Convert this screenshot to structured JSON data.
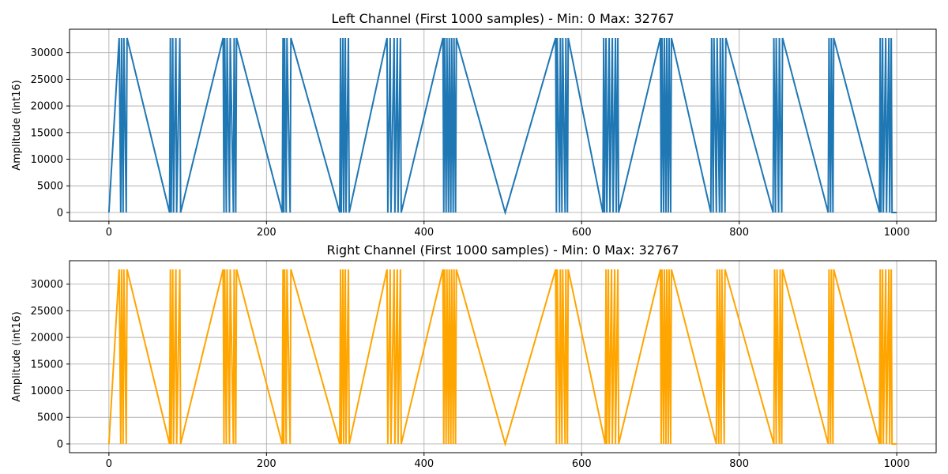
{
  "chart_data": [
    {
      "type": "line",
      "title": "Left Channel (First 1000 samples) - Min: 0 Max: 32767",
      "xlabel": "",
      "ylabel": "Amplitude (int16)",
      "xlim": [
        -50,
        1050
      ],
      "ylim": [
        -1638,
        34405
      ],
      "xticks": [
        0,
        200,
        400,
        600,
        800,
        1000
      ],
      "yticks": [
        0,
        5000,
        10000,
        15000,
        20000,
        25000,
        30000
      ],
      "grid": true,
      "color": "#1f77b4",
      "series": [
        {
          "low": 0,
          "high": 32767,
          "start_level": 0,
          "x_end": 1000,
          "x_step": 1,
          "transitions": [
            13,
            15,
            16,
            18,
            19,
            22,
            23,
            77,
            78,
            79,
            81,
            82,
            85,
            86,
            90,
            91,
            145,
            146,
            147,
            149,
            150,
            153,
            154,
            158,
            159,
            161,
            162,
            220,
            221,
            222,
            223,
            225,
            226,
            230,
            231,
            293,
            294,
            295,
            297,
            298,
            300,
            301,
            304,
            305,
            353,
            354,
            357,
            358,
            362,
            363,
            366,
            367,
            370,
            371,
            424,
            425,
            426,
            428,
            429,
            431,
            432,
            434,
            435,
            437,
            438,
            440,
            441,
            503,
            567,
            568,
            569,
            572,
            573,
            575,
            576,
            579,
            580,
            582,
            583,
            627,
            628,
            629,
            631,
            632,
            635,
            636,
            639,
            640,
            643,
            644,
            646,
            647,
            700,
            701,
            702,
            704,
            705,
            707,
            708,
            710,
            711,
            713,
            714,
            764,
            765,
            767,
            768,
            771,
            772,
            775,
            776,
            778,
            779,
            782,
            783,
            843,
            844,
            846,
            847,
            850,
            851,
            854,
            855,
            913,
            914,
            916,
            917,
            919,
            920,
            978,
            979,
            980,
            982,
            983,
            986,
            987,
            990,
            991,
            993,
            994
          ]
        }
      ]
    },
    {
      "type": "line",
      "title": "Right Channel (First 1000 samples) - Min: 0 Max: 32767",
      "xlabel": "",
      "ylabel": "Amplitude (int16)",
      "xlim": [
        -50,
        1050
      ],
      "ylim": [
        -1638,
        34405
      ],
      "xticks": [
        0,
        200,
        400,
        600,
        800,
        1000
      ],
      "yticks": [
        0,
        5000,
        10000,
        15000,
        20000,
        25000,
        30000
      ],
      "grid": true,
      "color": "#ffa500",
      "series": [
        {
          "low": 0,
          "high": 32767,
          "start_level": 0,
          "x_end": 1000,
          "x_step": 1,
          "transitions": [
            13,
            15,
            16,
            18,
            19,
            22,
            23,
            77,
            78,
            79,
            81,
            82,
            85,
            86,
            90,
            91,
            145,
            146,
            147,
            149,
            150,
            153,
            154,
            158,
            159,
            161,
            162,
            220,
            221,
            222,
            223,
            225,
            226,
            230,
            231,
            293,
            294,
            295,
            297,
            298,
            300,
            301,
            304,
            305,
            353,
            354,
            357,
            358,
            362,
            363,
            366,
            367,
            370,
            371,
            424,
            425,
            426,
            428,
            429,
            431,
            432,
            434,
            435,
            437,
            438,
            440,
            441,
            503,
            567,
            568,
            569,
            572,
            573,
            575,
            576,
            579,
            580,
            582,
            583,
            630,
            631,
            632,
            634,
            635,
            638,
            639,
            642,
            643,
            646,
            647,
            700,
            701,
            702,
            704,
            705,
            707,
            708,
            710,
            711,
            713,
            714,
            771,
            772,
            774,
            775,
            777,
            778,
            781,
            782,
            844,
            845,
            847,
            848,
            851,
            852,
            854,
            855,
            913,
            914,
            916,
            917,
            919,
            920,
            978,
            979,
            980,
            982,
            983,
            986,
            987,
            990,
            991,
            993,
            994
          ]
        }
      ]
    }
  ]
}
